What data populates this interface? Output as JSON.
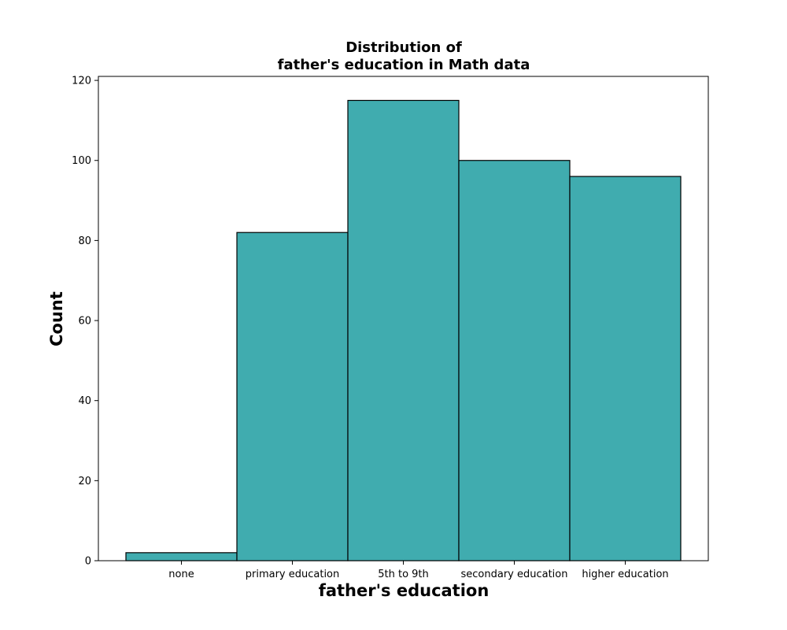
{
  "chart_data": {
    "type": "bar",
    "title_lines": [
      "Distribution of",
      "father's education in Math data"
    ],
    "xlabel": "father's education",
    "ylabel": "Count",
    "categories": [
      "none",
      "primary education",
      "5th to 9th",
      "secondary education",
      "higher education"
    ],
    "values": [
      2,
      82,
      115,
      100,
      96
    ],
    "ylim": [
      0,
      121
    ],
    "yticks": [
      0,
      20,
      40,
      60,
      80,
      100,
      120
    ],
    "grid": false,
    "bar_color": "#40acaf",
    "edge_color": "#000000"
  }
}
